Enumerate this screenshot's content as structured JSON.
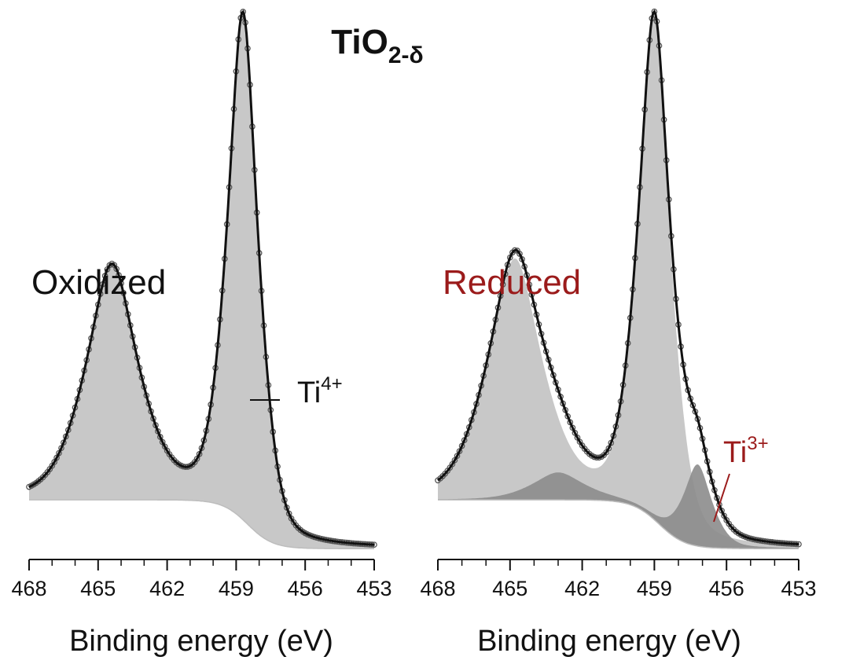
{
  "figure": {
    "title_main": "TiO",
    "title_subscript": "2-δ"
  },
  "colors": {
    "text": "#111111",
    "reduced": "#9b1b1b",
    "fill_main": "#c8c8c8",
    "fill_ti3": "#8c8c8c",
    "fit_line": "#111111",
    "marker": "#555555"
  },
  "chart_data": [
    {
      "type": "line",
      "panel": "Oxidized",
      "label": "Oxidized",
      "xlabel": "Binding energy (eV)",
      "xlim": [
        468,
        453
      ],
      "x_reversed": true,
      "xticks": [
        468,
        465,
        462,
        459,
        456,
        453
      ],
      "ylim": [
        0,
        1
      ],
      "grid": false,
      "annotations": [
        {
          "text": "Ti",
          "superscript": "4+",
          "x": 458.4,
          "y": 0.35
        }
      ],
      "components": [
        {
          "name": "Ti4+",
          "peaks": [
            {
              "center": 458.7,
              "height": 0.93,
              "width": 0.62
            },
            {
              "center": 464.4,
              "height": 0.43,
              "width": 1.05
            }
          ]
        }
      ],
      "background": {
        "low": 0.02,
        "step": 0.09,
        "step_center": 458.5
      }
    },
    {
      "type": "line",
      "panel": "Reduced",
      "label": "Reduced",
      "xlabel": "Binding energy (eV)",
      "xlim": [
        468,
        453
      ],
      "x_reversed": true,
      "xticks": [
        468,
        465,
        462,
        459,
        456,
        453
      ],
      "ylim": [
        0,
        1
      ],
      "grid": false,
      "annotations": [
        {
          "text": "Ti",
          "superscript": "3+",
          "x": 456.4,
          "y": 0.06
        }
      ],
      "components": [
        {
          "name": "Ti4+",
          "peaks": [
            {
              "center": 459.0,
              "height": 0.92,
              "width": 0.62
            },
            {
              "center": 464.8,
              "height": 0.44,
              "width": 1.05
            }
          ]
        },
        {
          "name": "Ti3+",
          "peaks": [
            {
              "center": 457.2,
              "height": 0.15,
              "width": 0.55
            },
            {
              "center": 463.0,
              "height": 0.05,
              "width": 1.0
            }
          ]
        }
      ],
      "background": {
        "low": 0.02,
        "step": 0.09,
        "step_center": 458.8
      }
    }
  ]
}
